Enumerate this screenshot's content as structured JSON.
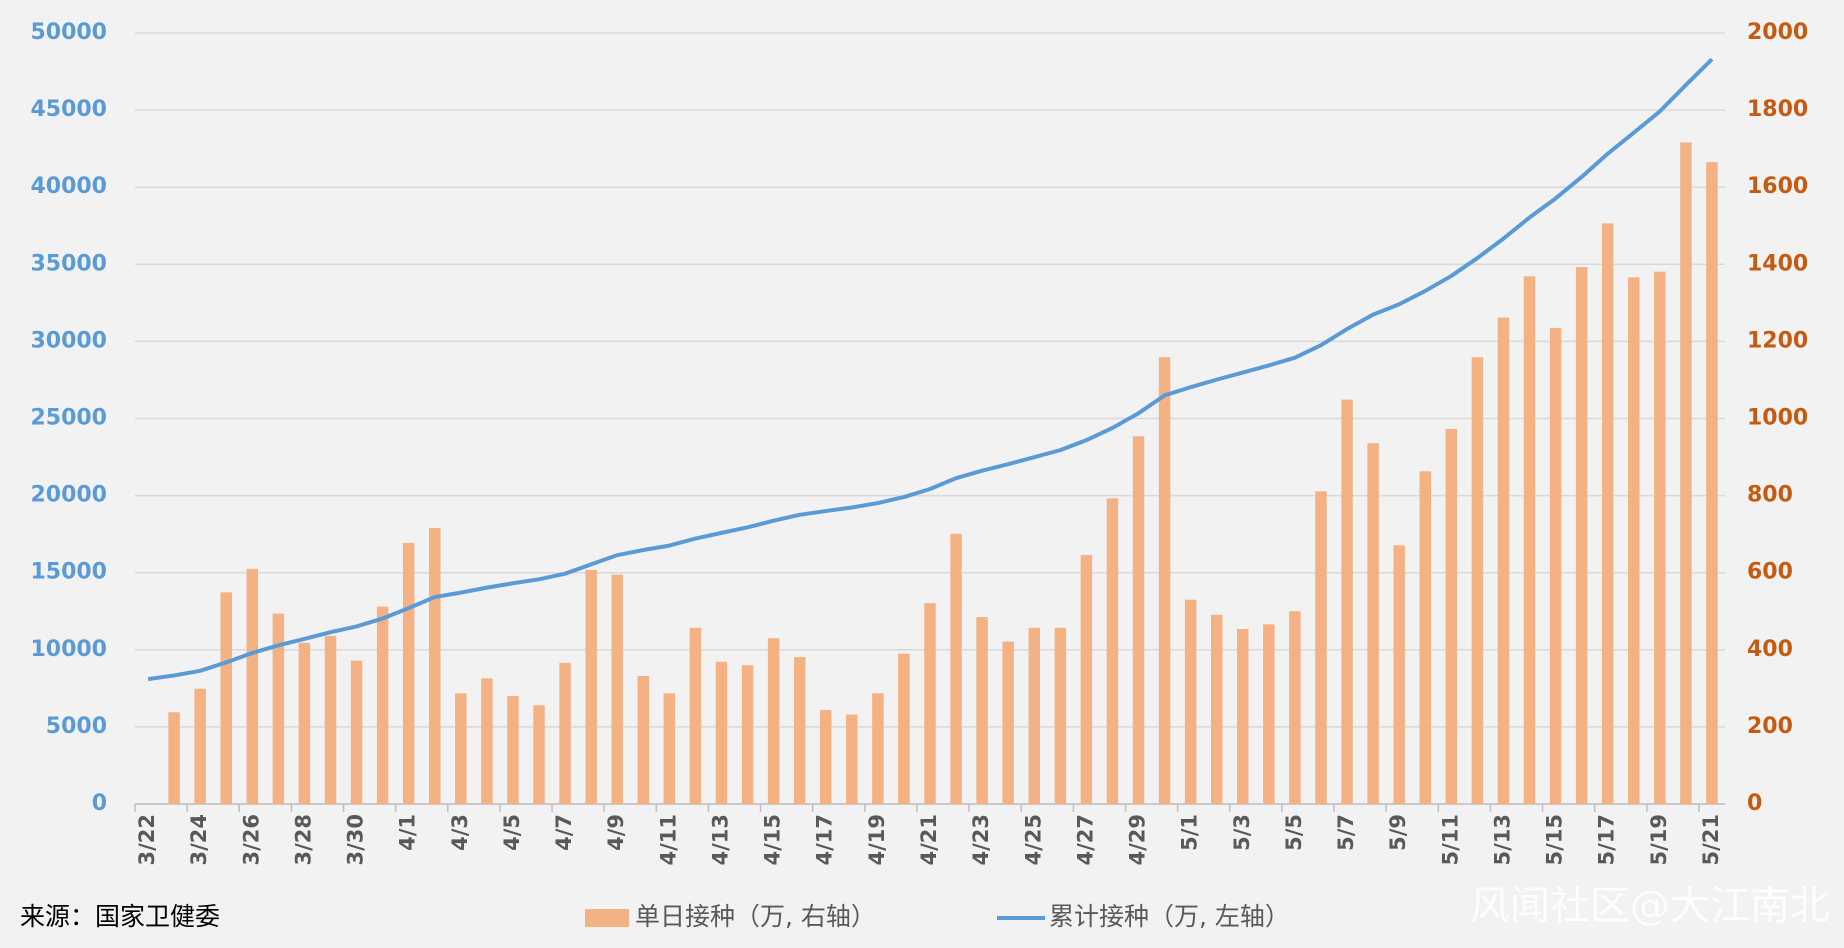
{
  "chart_data": {
    "type": "bar_line",
    "categories": [
      "3/22",
      null,
      "3/24",
      null,
      "3/26",
      null,
      "3/28",
      null,
      "3/30",
      null,
      "4/1",
      null,
      "4/3",
      null,
      "4/5",
      null,
      "4/7",
      null,
      "4/9",
      null,
      "4/11",
      null,
      "4/13",
      null,
      "4/15",
      null,
      "4/17",
      null,
      "4/19",
      null,
      "4/21",
      null,
      "4/23",
      null,
      "4/25",
      null,
      "4/27",
      null,
      "4/29",
      null,
      "5/1",
      null,
      "5/3",
      null,
      "5/5",
      null,
      "5/7",
      null,
      "5/9",
      null,
      "5/11",
      null,
      "5/13",
      null,
      "5/15",
      null,
      "5/17",
      null,
      "5/19",
      null,
      "5/21"
    ],
    "series": [
      {
        "name": "单日接种（万, 右轴）",
        "type": "bar",
        "axis": "y2",
        "color": "#f4b183",
        "values": [
          null,
          238,
          299,
          549,
          610,
          494,
          418,
          436,
          372,
          512,
          677,
          716,
          287,
          326,
          280,
          256,
          366,
          607,
          595,
          332,
          287,
          457,
          369,
          360,
          430,
          381,
          244,
          232,
          287,
          390,
          521,
          701,
          485,
          421,
          457,
          457,
          646,
          793,
          954,
          1159,
          530,
          491,
          454,
          466,
          500,
          811,
          1049,
          936,
          671,
          863,
          973,
          1159,
          1262,
          1369,
          1235,
          1393,
          1506,
          1366,
          1381,
          1716,
          1665
        ]
      },
      {
        "name": "累计接种（万, 左轴）",
        "type": "line",
        "axis": "y",
        "color": "#5b9bd5",
        "values": [
          8100,
          8338,
          8637,
          9186,
          9796,
          10290,
          10708,
          11144,
          11516,
          12028,
          12705,
          13421,
          13708,
          14034,
          14314,
          14570,
          14936,
          15543,
          16138,
          16470,
          16757,
          17214,
          17583,
          17943,
          18373,
          18754,
          18998,
          19230,
          19517,
          19907,
          20428,
          21129,
          21614,
          22035,
          22492,
          22949,
          23595,
          24388,
          25342,
          26501,
          27031,
          27522,
          27976,
          28442,
          28942,
          29753,
          30802,
          31738,
          32409,
          33272,
          34245,
          35404,
          36666,
          38035,
          39270,
          40663,
          42169,
          43535,
          44916,
          46632,
          48297
        ]
      }
    ],
    "ylim": [
      0,
      50000
    ],
    "yticks": [
      0,
      5000,
      10000,
      15000,
      20000,
      25000,
      30000,
      35000,
      40000,
      45000,
      50000
    ],
    "y2lim": [
      0,
      2000
    ],
    "y2ticks": [
      0,
      200,
      400,
      600,
      800,
      1000,
      1200,
      1400,
      1600,
      1800,
      2000
    ],
    "grid": true,
    "legend": "bottom",
    "source": "来源：国家卫健委",
    "watermark": "风闻社区@大江南北"
  }
}
